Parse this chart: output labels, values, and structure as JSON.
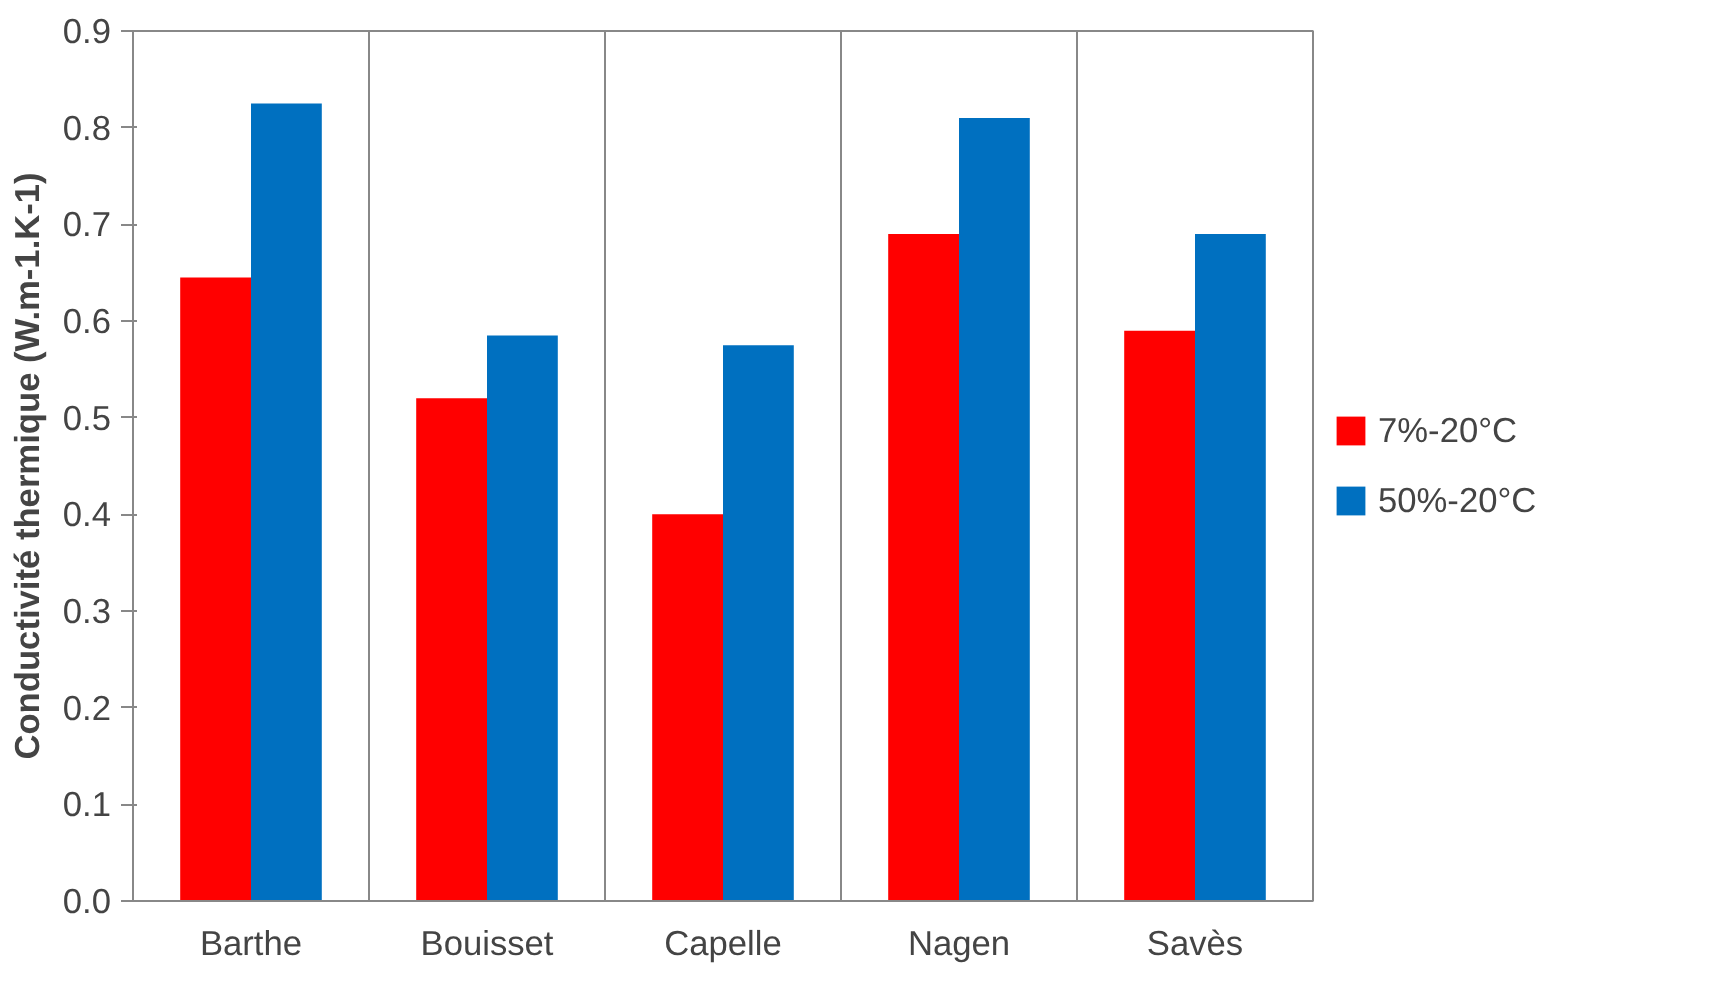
{
  "chart_data": {
    "type": "bar",
    "ylabel": "Conductivité thermique (W.m-1.K-1)",
    "categories": [
      "Barthe",
      "Bouisset",
      "Capelle",
      "Nagen",
      "Savès"
    ],
    "series": [
      {
        "name": "7%-20°C",
        "color": "#ff0000",
        "values": [
          0.645,
          0.52,
          0.4,
          0.69,
          0.59
        ]
      },
      {
        "name": "50%-20°C",
        "color": "#0070c0",
        "values": [
          0.825,
          0.585,
          0.575,
          0.81,
          0.69
        ]
      }
    ],
    "ylim": [
      0,
      0.9
    ],
    "yticks": [
      {
        "value": 0,
        "label": "0.0"
      },
      0.1,
      0.2,
      0.3,
      0.4,
      0.5,
      0.6,
      0.7,
      0.8,
      0.9
    ],
    "grid": "x",
    "legend": "right"
  }
}
